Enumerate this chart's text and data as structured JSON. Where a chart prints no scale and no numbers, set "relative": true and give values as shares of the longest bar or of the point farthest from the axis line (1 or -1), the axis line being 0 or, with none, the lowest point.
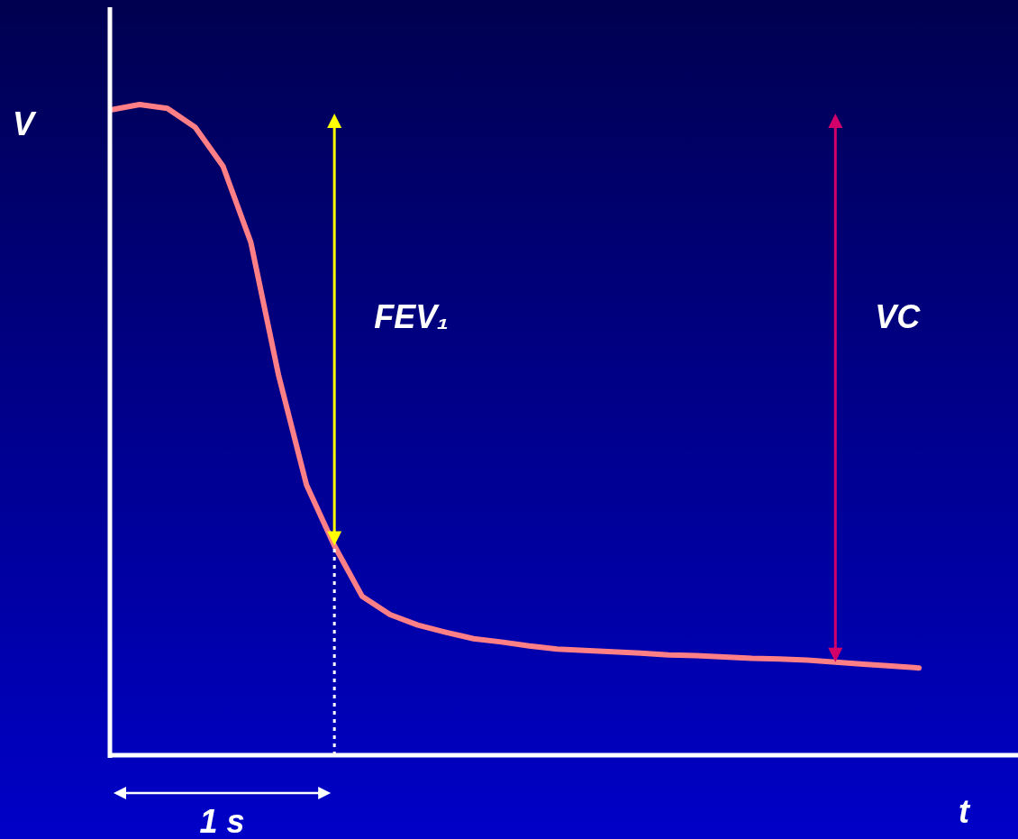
{
  "chart_data": {
    "type": "line",
    "relative": true,
    "xlabel": "t",
    "ylabel": "V",
    "categories": [
      null,
      null,
      null,
      null,
      null,
      null,
      null,
      null,
      null,
      null,
      null,
      null,
      null,
      null,
      null,
      null,
      null,
      null,
      null,
      null,
      null,
      null,
      null,
      null,
      null,
      null,
      null,
      null,
      null,
      null
    ],
    "series": [
      {
        "color": "#ff7f86",
        "line_style": "solid",
        "values": [
          0.992,
          1.0,
          0.994,
          0.965,
          0.905,
          0.788,
          0.583,
          0.415,
          0.322,
          0.244,
          0.216,
          0.2,
          0.189,
          0.179,
          0.174,
          0.168,
          0.163,
          0.161,
          0.159,
          0.157,
          0.154,
          0.153,
          0.151,
          0.149,
          0.148,
          0.146,
          0.143,
          0.14,
          0.137,
          0.134
        ]
      }
    ],
    "annotations": [
      "FEV₁",
      "VC",
      "1 s"
    ]
  }
}
